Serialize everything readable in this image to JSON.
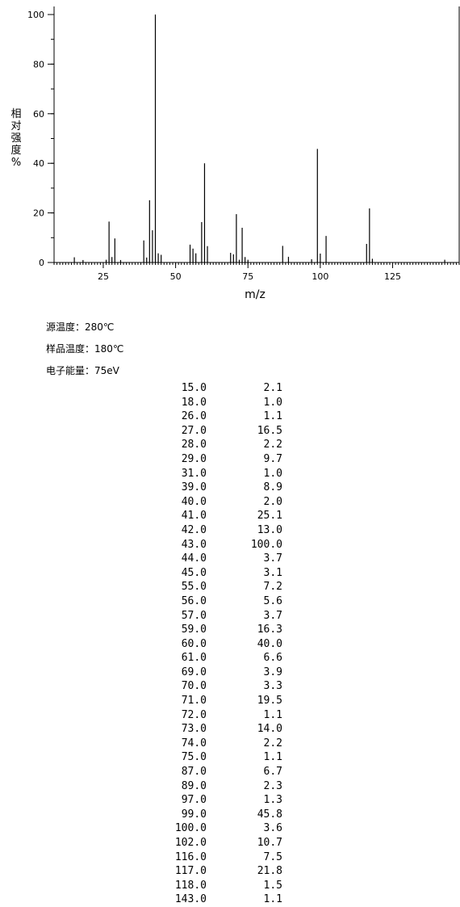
{
  "chart_data": {
    "type": "bar",
    "xlabel": "m/z",
    "ylabel": "相对强度%",
    "xlim": [
      8,
      148
    ],
    "ylim": [
      0,
      100
    ],
    "xticks": [
      25,
      50,
      75,
      100,
      125
    ],
    "yticks": [
      0,
      20,
      40,
      60,
      80,
      100
    ],
    "grid": false,
    "x": [
      15,
      18,
      26,
      27,
      28,
      29,
      31,
      39,
      40,
      41,
      42,
      43,
      44,
      45,
      55,
      56,
      57,
      59,
      60,
      61,
      69,
      70,
      71,
      72,
      73,
      74,
      75,
      87,
      89,
      97,
      99,
      100,
      102,
      116,
      117,
      118,
      143
    ],
    "values": [
      2.1,
      1.0,
      1.1,
      16.5,
      2.2,
      9.7,
      1.0,
      8.9,
      2.0,
      25.1,
      13.0,
      100.0,
      3.7,
      3.1,
      7.2,
      5.6,
      3.7,
      16.3,
      40.0,
      6.6,
      3.9,
      3.3,
      19.5,
      1.1,
      14.0,
      2.2,
      1.1,
      6.7,
      2.3,
      1.3,
      45.8,
      3.6,
      10.7,
      7.5,
      21.8,
      1.5,
      1.1
    ]
  },
  "ylabel_chars": [
    "相",
    "对",
    "强",
    "度",
    "%"
  ],
  "meta": [
    {
      "text": "源温度：280℃"
    },
    {
      "text": "样品温度：180℃"
    },
    {
      "text": "电子能量：75eV"
    }
  ],
  "peaks": [
    {
      "mz": "15.0",
      "intensity": "2.1"
    },
    {
      "mz": "18.0",
      "intensity": "1.0"
    },
    {
      "mz": "26.0",
      "intensity": "1.1"
    },
    {
      "mz": "27.0",
      "intensity": "16.5"
    },
    {
      "mz": "28.0",
      "intensity": "2.2"
    },
    {
      "mz": "29.0",
      "intensity": "9.7"
    },
    {
      "mz": "31.0",
      "intensity": "1.0"
    },
    {
      "mz": "39.0",
      "intensity": "8.9"
    },
    {
      "mz": "40.0",
      "intensity": "2.0"
    },
    {
      "mz": "41.0",
      "intensity": "25.1"
    },
    {
      "mz": "42.0",
      "intensity": "13.0"
    },
    {
      "mz": "43.0",
      "intensity": "100.0"
    },
    {
      "mz": "44.0",
      "intensity": "3.7"
    },
    {
      "mz": "45.0",
      "intensity": "3.1"
    },
    {
      "mz": "55.0",
      "intensity": "7.2"
    },
    {
      "mz": "56.0",
      "intensity": "5.6"
    },
    {
      "mz": "57.0",
      "intensity": "3.7"
    },
    {
      "mz": "59.0",
      "intensity": "16.3"
    },
    {
      "mz": "60.0",
      "intensity": "40.0"
    },
    {
      "mz": "61.0",
      "intensity": "6.6"
    },
    {
      "mz": "69.0",
      "intensity": "3.9"
    },
    {
      "mz": "70.0",
      "intensity": "3.3"
    },
    {
      "mz": "71.0",
      "intensity": "19.5"
    },
    {
      "mz": "72.0",
      "intensity": "1.1"
    },
    {
      "mz": "73.0",
      "intensity": "14.0"
    },
    {
      "mz": "74.0",
      "intensity": "2.2"
    },
    {
      "mz": "75.0",
      "intensity": "1.1"
    },
    {
      "mz": "87.0",
      "intensity": "6.7"
    },
    {
      "mz": "89.0",
      "intensity": "2.3"
    },
    {
      "mz": "97.0",
      "intensity": "1.3"
    },
    {
      "mz": "99.0",
      "intensity": "45.8"
    },
    {
      "mz": "100.0",
      "intensity": "3.6"
    },
    {
      "mz": "102.0",
      "intensity": "10.7"
    },
    {
      "mz": "116.0",
      "intensity": "7.5"
    },
    {
      "mz": "117.0",
      "intensity": "21.8"
    },
    {
      "mz": "118.0",
      "intensity": "1.5"
    },
    {
      "mz": "143.0",
      "intensity": "1.1"
    }
  ]
}
